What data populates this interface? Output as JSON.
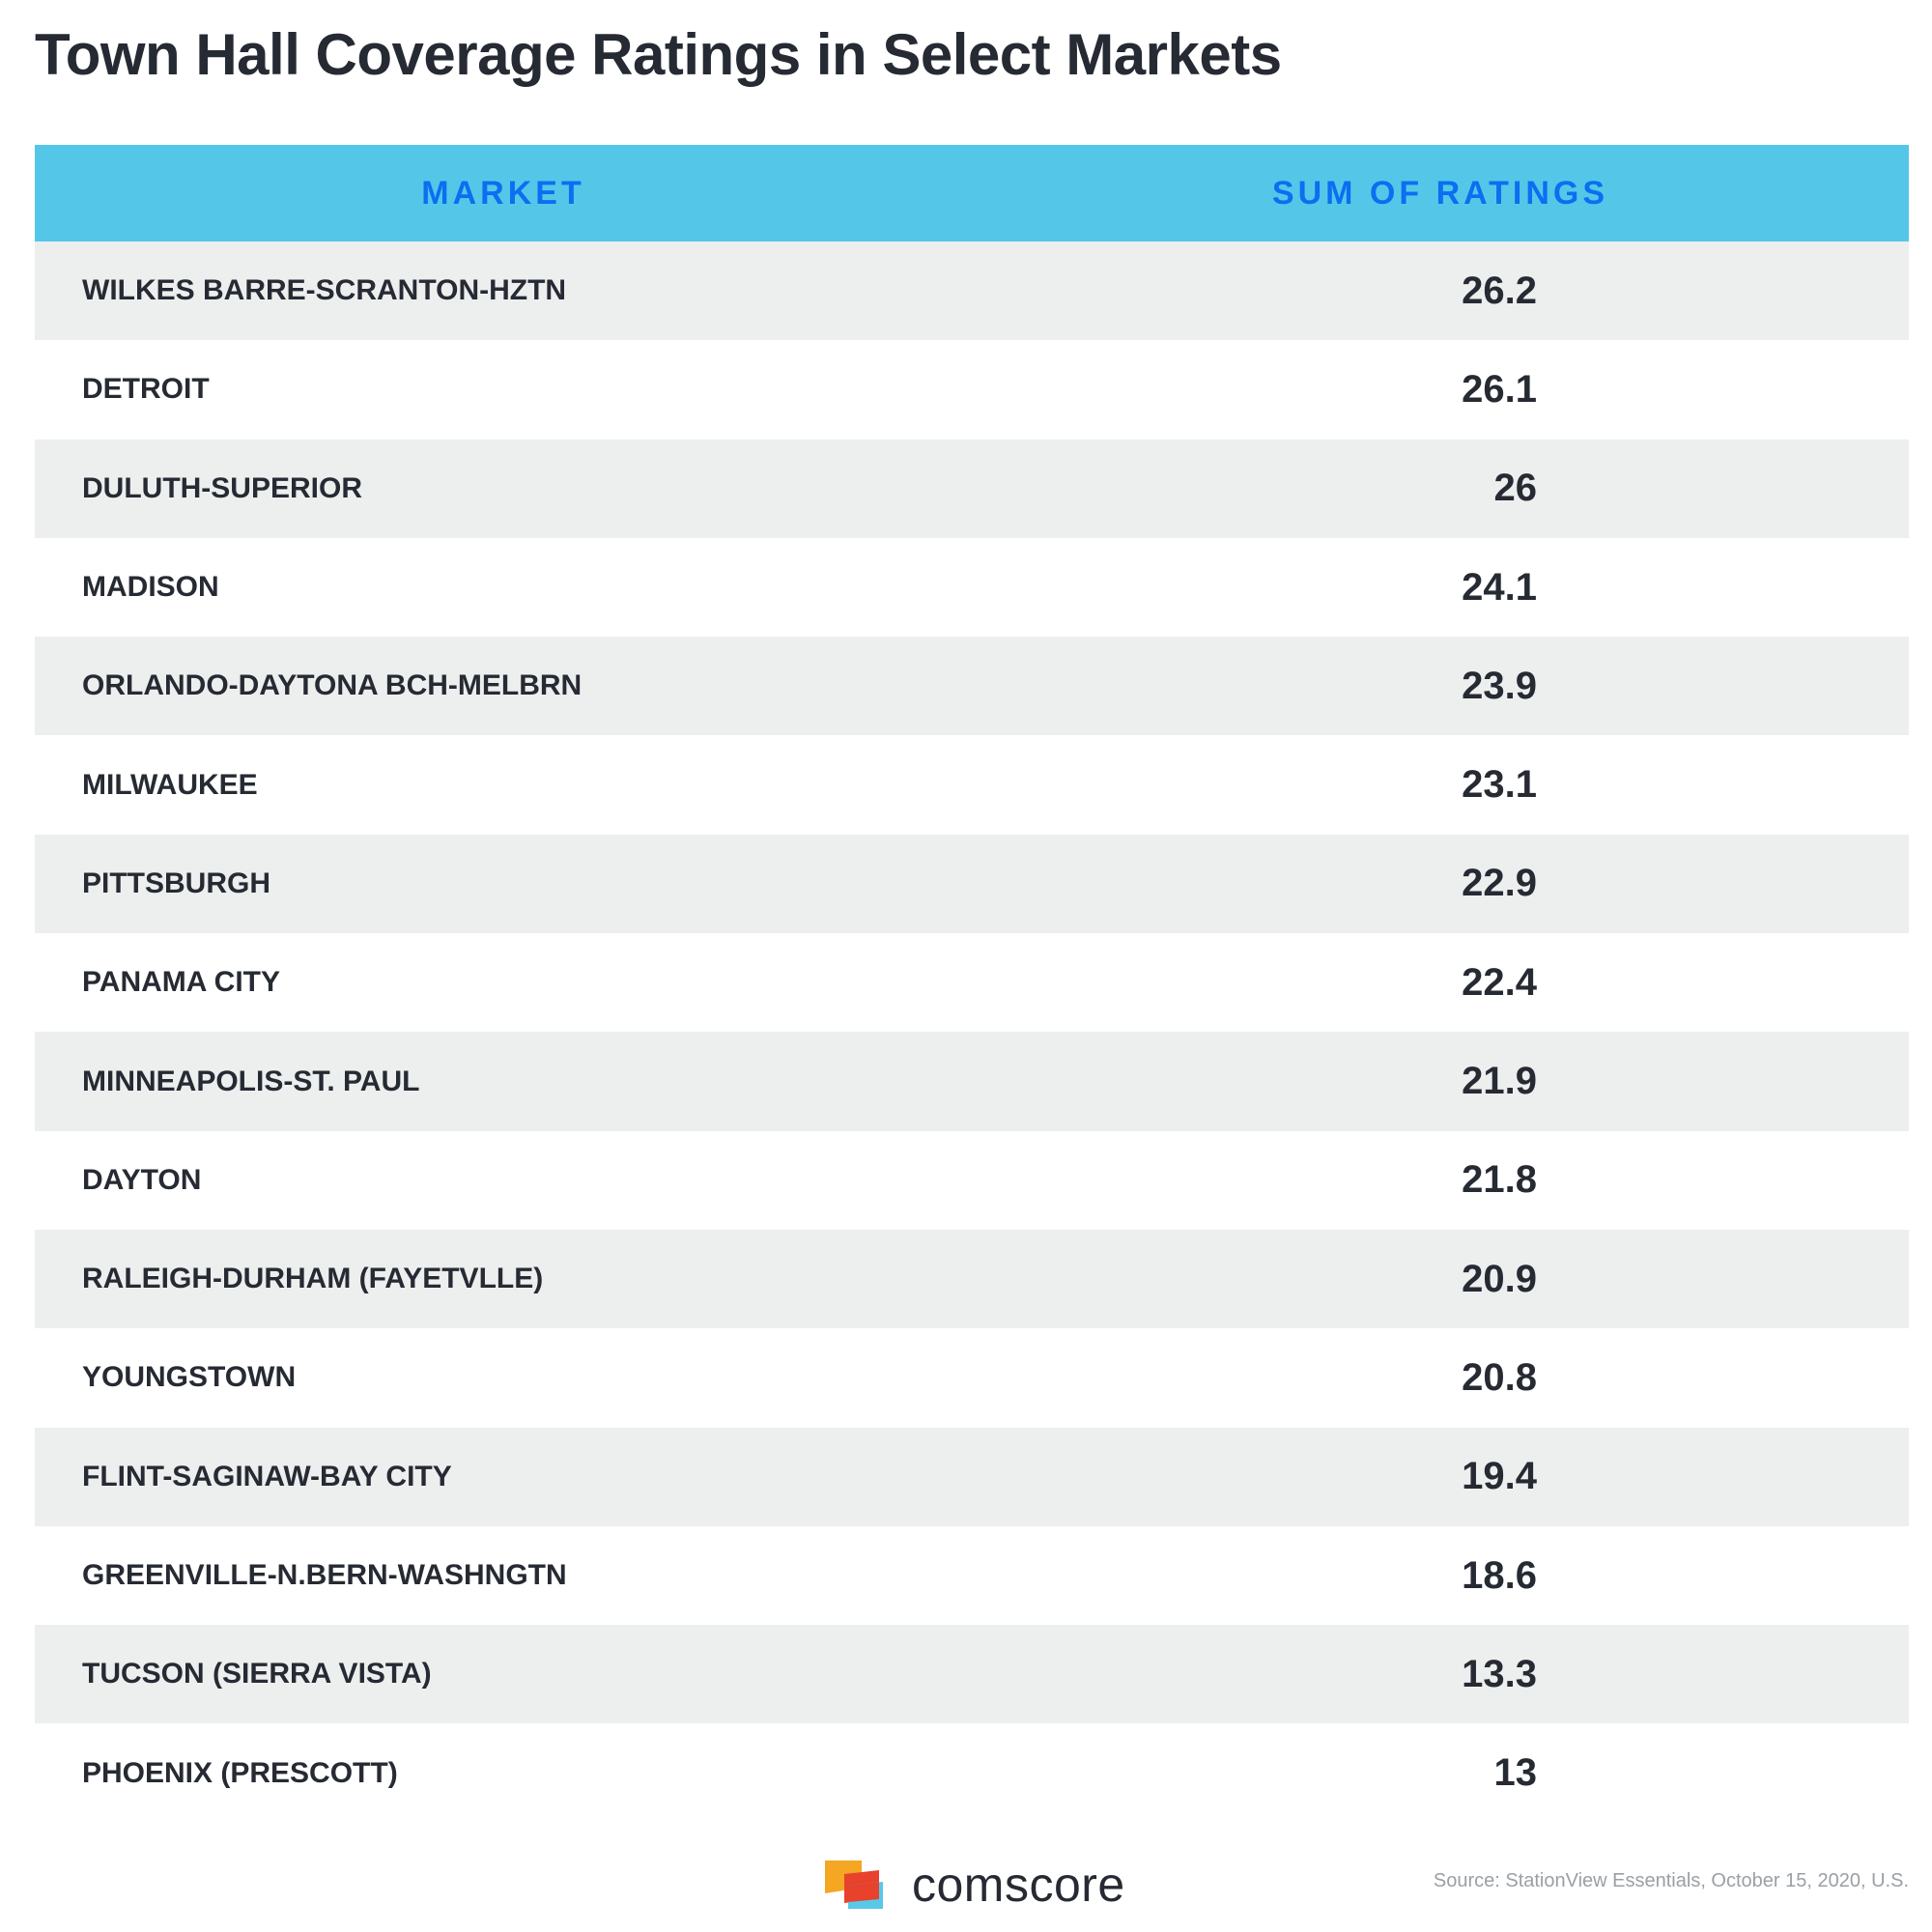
{
  "chart_data": {
    "type": "table",
    "title": "Town Hall Coverage Ratings in Select Markets",
    "columns": [
      "MARKET",
      "SUM OF RATINGS"
    ],
    "rows": [
      {
        "market": "WILKES BARRE-SCRANTON-HZTN",
        "value": "26.2"
      },
      {
        "market": "DETROIT",
        "value": "26.1"
      },
      {
        "market": "DULUTH-SUPERIOR",
        "value": "26"
      },
      {
        "market": "MADISON",
        "value": "24.1"
      },
      {
        "market": "ORLANDO-DAYTONA BCH-MELBRN",
        "value": "23.9"
      },
      {
        "market": "MILWAUKEE",
        "value": "23.1"
      },
      {
        "market": "PITTSBURGH",
        "value": "22.9"
      },
      {
        "market": "PANAMA CITY",
        "value": "22.4"
      },
      {
        "market": "MINNEAPOLIS-ST. PAUL",
        "value": "21.9"
      },
      {
        "market": "DAYTON",
        "value": "21.8"
      },
      {
        "market": "RALEIGH-DURHAM (FAYETVLLE)",
        "value": "20.9"
      },
      {
        "market": "YOUNGSTOWN",
        "value": "20.8"
      },
      {
        "market": "FLINT-SAGINAW-BAY CITY",
        "value": "19.4"
      },
      {
        "market": "GREENVILLE-N.BERN-WASHNGTN",
        "value": "18.6"
      },
      {
        "market": "TUCSON (SIERRA VISTA)",
        "value": "13.3"
      },
      {
        "market": "PHOENIX (PRESCOTT)",
        "value": "13"
      }
    ]
  },
  "footer": {
    "logo_text": "comscore",
    "source": "Source: StationView Essentials, October 15, 2020, U.S."
  },
  "colors": {
    "header_bg": "#54c7e9",
    "header_text": "#0a6ff0",
    "row_alt": "#edeeee",
    "text": "#262a33"
  }
}
